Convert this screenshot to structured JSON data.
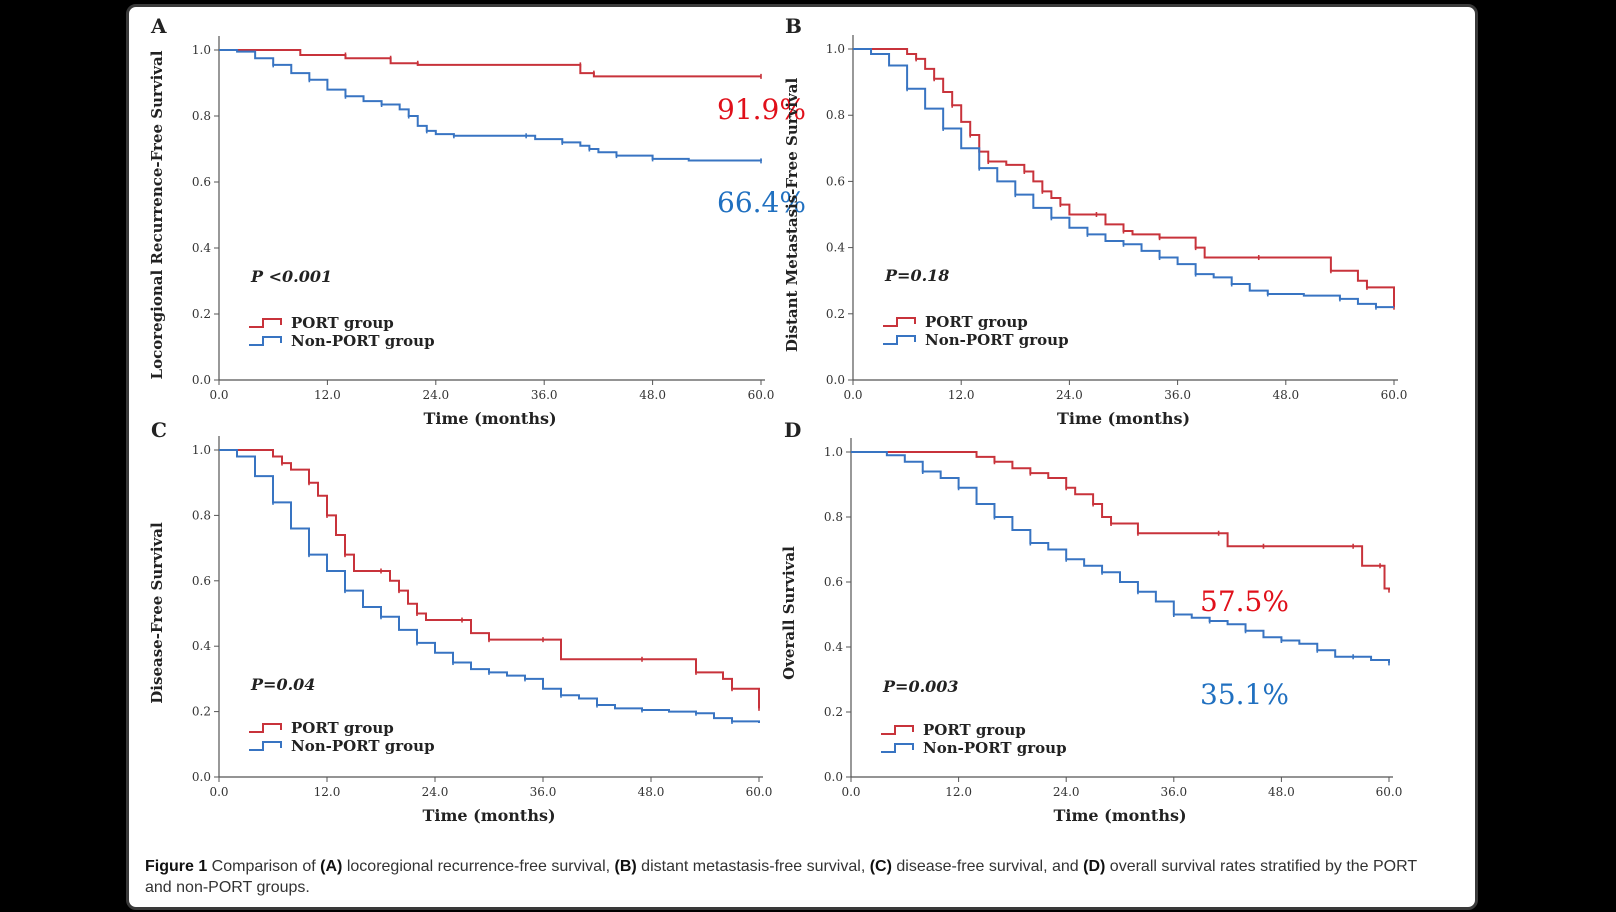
{
  "figure": {
    "caption_label": "Figure 1",
    "caption_parts": [
      {
        "t": " Comparison of ",
        "b": false
      },
      {
        "t": "(A)",
        "b": true
      },
      {
        "t": " locoregional recurrence-free survival, ",
        "b": false
      },
      {
        "t": "(B)",
        "b": true
      },
      {
        "t": " distant metastasis-free survival, ",
        "b": false
      },
      {
        "t": "(C)",
        "b": true
      },
      {
        "t": " disease-free survival, and ",
        "b": false
      },
      {
        "t": "(D)",
        "b": true
      },
      {
        "t": " overall survival rates stratified by the PORT and non-PORT groups.",
        "b": false
      }
    ]
  },
  "colors": {
    "port": "#c8333b",
    "nonport": "#3874c2",
    "annot_red": "#e0101a",
    "annot_blue": "#2070c0",
    "axis": "#555555"
  },
  "chart_data": [
    {
      "panel": "A",
      "type": "line",
      "xlabel": "Time (months)",
      "ylabel": "Locoregional Recurrence-Free Survival",
      "xlim": [
        0,
        60
      ],
      "ylim": [
        0,
        1.0
      ],
      "xticks": [
        "0.0",
        "12.0",
        "24.0",
        "36.0",
        "48.0",
        "60.0"
      ],
      "yticks": [
        "0.0",
        "0.2",
        "0.4",
        "0.6",
        "0.8",
        "1.0"
      ],
      "pvalue": "P <0.001",
      "legend": [
        "PORT group",
        "Non-PORT group"
      ],
      "annotations": [
        {
          "text": "91.9%",
          "color": "red"
        },
        {
          "text": "66.4%",
          "color": "blue"
        }
      ],
      "series": [
        {
          "name": "PORT group",
          "points": [
            [
              0,
              1.0
            ],
            [
              9,
              1.0
            ],
            [
              9,
              0.985
            ],
            [
              14,
              0.985
            ],
            [
              14,
              0.975
            ],
            [
              19,
              0.975
            ],
            [
              19,
              0.96
            ],
            [
              22,
              0.96
            ],
            [
              22,
              0.955
            ],
            [
              40,
              0.955
            ],
            [
              40,
              0.93
            ],
            [
              41.5,
              0.93
            ],
            [
              41.5,
              0.92
            ],
            [
              60,
              0.92
            ]
          ]
        },
        {
          "name": "Non-PORT group",
          "points": [
            [
              0,
              1.0
            ],
            [
              2,
              0.995
            ],
            [
              4,
              0.975
            ],
            [
              6,
              0.955
            ],
            [
              8,
              0.93
            ],
            [
              10,
              0.91
            ],
            [
              12,
              0.88
            ],
            [
              14,
              0.86
            ],
            [
              16,
              0.845
            ],
            [
              18,
              0.835
            ],
            [
              20,
              0.82
            ],
            [
              21,
              0.8
            ],
            [
              22,
              0.77
            ],
            [
              23,
              0.755
            ],
            [
              24,
              0.745
            ],
            [
              26,
              0.74
            ],
            [
              30,
              0.74
            ],
            [
              34,
              0.74
            ],
            [
              35,
              0.73
            ],
            [
              38,
              0.72
            ],
            [
              40,
              0.71
            ],
            [
              41,
              0.7
            ],
            [
              42,
              0.69
            ],
            [
              44,
              0.68
            ],
            [
              47,
              0.68
            ],
            [
              48,
              0.67
            ],
            [
              52,
              0.665
            ],
            [
              60,
              0.664
            ]
          ]
        }
      ]
    },
    {
      "panel": "B",
      "type": "line",
      "xlabel": "Time (months)",
      "ylabel": "Distant Metastasis-Free Survival",
      "xlim": [
        0,
        60
      ],
      "ylim": [
        0,
        1.0
      ],
      "xticks": [
        "0.0",
        "12.0",
        "24.0",
        "36.0",
        "48.0",
        "60.0"
      ],
      "yticks": [
        "0.0",
        "0.2",
        "0.4",
        "0.6",
        "0.8",
        "1.0"
      ],
      "pvalue": "P=0.18",
      "legend": [
        "PORT group",
        "Non-PORT group"
      ],
      "annotations": [],
      "series": [
        {
          "name": "PORT group",
          "points": [
            [
              0,
              1.0
            ],
            [
              5,
              1.0
            ],
            [
              6,
              0.985
            ],
            [
              7,
              0.97
            ],
            [
              8,
              0.94
            ],
            [
              9,
              0.91
            ],
            [
              10,
              0.87
            ],
            [
              11,
              0.83
            ],
            [
              12,
              0.78
            ],
            [
              13,
              0.74
            ],
            [
              14,
              0.69
            ],
            [
              15,
              0.66
            ],
            [
              17,
              0.65
            ],
            [
              19,
              0.63
            ],
            [
              20,
              0.6
            ],
            [
              21,
              0.57
            ],
            [
              22,
              0.55
            ],
            [
              23,
              0.53
            ],
            [
              24,
              0.5
            ],
            [
              27,
              0.5
            ],
            [
              28,
              0.47
            ],
            [
              30,
              0.45
            ],
            [
              31,
              0.44
            ],
            [
              34,
              0.43
            ],
            [
              37,
              0.43
            ],
            [
              38,
              0.4
            ],
            [
              39,
              0.37
            ],
            [
              45,
              0.37
            ],
            [
              52,
              0.37
            ],
            [
              53,
              0.33
            ],
            [
              56,
              0.3
            ],
            [
              57,
              0.28
            ],
            [
              59,
              0.28
            ],
            [
              60,
              0.22
            ]
          ]
        },
        {
          "name": "Non-PORT group",
          "points": [
            [
              0,
              1.0
            ],
            [
              2,
              0.985
            ],
            [
              4,
              0.95
            ],
            [
              6,
              0.88
            ],
            [
              8,
              0.82
            ],
            [
              10,
              0.76
            ],
            [
              12,
              0.7
            ],
            [
              14,
              0.64
            ],
            [
              16,
              0.6
            ],
            [
              18,
              0.56
            ],
            [
              20,
              0.52
            ],
            [
              22,
              0.49
            ],
            [
              24,
              0.46
            ],
            [
              26,
              0.44
            ],
            [
              28,
              0.42
            ],
            [
              30,
              0.41
            ],
            [
              32,
              0.39
            ],
            [
              34,
              0.37
            ],
            [
              36,
              0.35
            ],
            [
              38,
              0.32
            ],
            [
              40,
              0.31
            ],
            [
              42,
              0.29
            ],
            [
              44,
              0.27
            ],
            [
              46,
              0.26
            ],
            [
              50,
              0.255
            ],
            [
              54,
              0.245
            ],
            [
              56,
              0.23
            ],
            [
              58,
              0.22
            ],
            [
              60,
              0.22
            ]
          ]
        }
      ]
    },
    {
      "panel": "C",
      "type": "line",
      "xlabel": "Time (months)",
      "ylabel": "Disease-Free Survival",
      "xlim": [
        0,
        60
      ],
      "ylim": [
        0,
        1.0
      ],
      "xticks": [
        "0.0",
        "12.0",
        "24.0",
        "36.0",
        "48.0",
        "60.0"
      ],
      "yticks": [
        "0.0",
        "0.2",
        "0.4",
        "0.6",
        "0.8",
        "1.0"
      ],
      "pvalue": "P=0.04",
      "legend": [
        "PORT group",
        "Non-PORT group"
      ],
      "annotations": [],
      "series": [
        {
          "name": "PORT group",
          "points": [
            [
              0,
              1.0
            ],
            [
              5,
              1.0
            ],
            [
              6,
              0.98
            ],
            [
              7,
              0.96
            ],
            [
              8,
              0.94
            ],
            [
              10,
              0.9
            ],
            [
              11,
              0.86
            ],
            [
              12,
              0.8
            ],
            [
              13,
              0.74
            ],
            [
              14,
              0.68
            ],
            [
              15,
              0.63
            ],
            [
              18,
              0.63
            ],
            [
              19,
              0.6
            ],
            [
              20,
              0.57
            ],
            [
              21,
              0.53
            ],
            [
              22,
              0.5
            ],
            [
              23,
              0.48
            ],
            [
              27,
              0.48
            ],
            [
              28,
              0.44
            ],
            [
              30,
              0.42
            ],
            [
              34,
              0.42
            ],
            [
              36,
              0.42
            ],
            [
              38,
              0.36
            ],
            [
              47,
              0.36
            ],
            [
              52,
              0.36
            ],
            [
              53,
              0.32
            ],
            [
              56,
              0.3
            ],
            [
              57,
              0.27
            ],
            [
              59,
              0.27
            ],
            [
              60,
              0.21
            ]
          ]
        },
        {
          "name": "Non-PORT group",
          "points": [
            [
              0,
              1.0
            ],
            [
              2,
              0.98
            ],
            [
              4,
              0.92
            ],
            [
              6,
              0.84
            ],
            [
              8,
              0.76
            ],
            [
              10,
              0.68
            ],
            [
              12,
              0.63
            ],
            [
              14,
              0.57
            ],
            [
              16,
              0.52
            ],
            [
              18,
              0.49
            ],
            [
              20,
              0.45
            ],
            [
              22,
              0.41
            ],
            [
              24,
              0.38
            ],
            [
              26,
              0.35
            ],
            [
              28,
              0.33
            ],
            [
              30,
              0.32
            ],
            [
              32,
              0.31
            ],
            [
              34,
              0.3
            ],
            [
              36,
              0.27
            ],
            [
              38,
              0.25
            ],
            [
              40,
              0.24
            ],
            [
              42,
              0.22
            ],
            [
              44,
              0.21
            ],
            [
              47,
              0.205
            ],
            [
              50,
              0.2
            ],
            [
              53,
              0.195
            ],
            [
              55,
              0.18
            ],
            [
              57,
              0.17
            ],
            [
              60,
              0.165
            ]
          ]
        }
      ]
    },
    {
      "panel": "D",
      "type": "line",
      "xlabel": "Time (months)",
      "ylabel": "Overall Survival",
      "xlim": [
        0,
        60
      ],
      "ylim": [
        0,
        1.0
      ],
      "xticks": [
        "0.0",
        "12.0",
        "24.0",
        "36.0",
        "48.0",
        "60.0"
      ],
      "yticks": [
        "0.0",
        "0.2",
        "0.4",
        "0.6",
        "0.8",
        "1.0"
      ],
      "pvalue": "P=0.003",
      "legend": [
        "PORT group",
        "Non-PORT group"
      ],
      "annotations": [
        {
          "text": "57.5%",
          "color": "red"
        },
        {
          "text": "35.1%",
          "color": "blue"
        }
      ],
      "series": [
        {
          "name": "PORT group",
          "points": [
            [
              0,
              1.0
            ],
            [
              13,
              1.0
            ],
            [
              14,
              0.985
            ],
            [
              16,
              0.97
            ],
            [
              18,
              0.95
            ],
            [
              20,
              0.935
            ],
            [
              22,
              0.92
            ],
            [
              24,
              0.89
            ],
            [
              25,
              0.87
            ],
            [
              27,
              0.84
            ],
            [
              28,
              0.8
            ],
            [
              29,
              0.78
            ],
            [
              31,
              0.78
            ],
            [
              32,
              0.75
            ],
            [
              38,
              0.75
            ],
            [
              41,
              0.75
            ],
            [
              42,
              0.71
            ],
            [
              46,
              0.71
            ],
            [
              52,
              0.71
            ],
            [
              56,
              0.71
            ],
            [
              57,
              0.65
            ],
            [
              59,
              0.65
            ],
            [
              59.5,
              0.58
            ],
            [
              60,
              0.575
            ]
          ]
        },
        {
          "name": "Non-PORT group",
          "points": [
            [
              0,
              1.0
            ],
            [
              4,
              0.99
            ],
            [
              6,
              0.97
            ],
            [
              8,
              0.94
            ],
            [
              10,
              0.92
            ],
            [
              12,
              0.89
            ],
            [
              14,
              0.84
            ],
            [
              16,
              0.8
            ],
            [
              18,
              0.76
            ],
            [
              20,
              0.72
            ],
            [
              22,
              0.7
            ],
            [
              24,
              0.67
            ],
            [
              26,
              0.65
            ],
            [
              28,
              0.63
            ],
            [
              30,
              0.6
            ],
            [
              32,
              0.57
            ],
            [
              34,
              0.54
            ],
            [
              36,
              0.5
            ],
            [
              38,
              0.49
            ],
            [
              40,
              0.48
            ],
            [
              42,
              0.47
            ],
            [
              44,
              0.45
            ],
            [
              46,
              0.43
            ],
            [
              48,
              0.42
            ],
            [
              50,
              0.41
            ],
            [
              52,
              0.39
            ],
            [
              54,
              0.37
            ],
            [
              56,
              0.37
            ],
            [
              58,
              0.36
            ],
            [
              60,
              0.351
            ]
          ]
        }
      ]
    }
  ]
}
